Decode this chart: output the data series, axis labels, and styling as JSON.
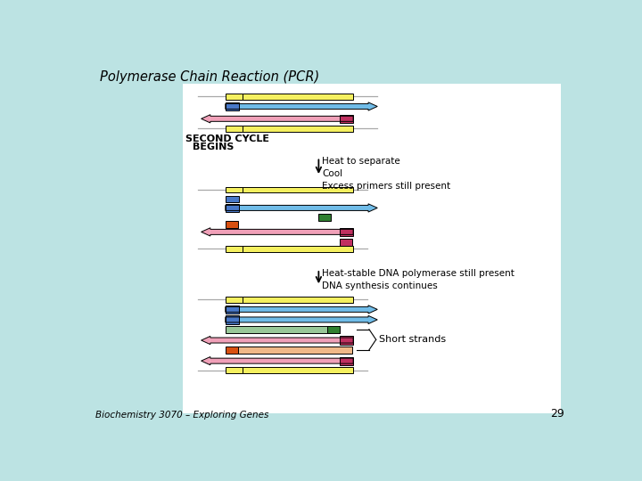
{
  "title": "Polymerase Chain Reaction (PCR)",
  "subtitle": "Biochemistry 3070 – Exploring Genes",
  "page_num": "29",
  "bg_color": "#bce3e3",
  "panel_color": "#ffffff",
  "colors": {
    "yellow": "#f5f060",
    "yellow_small": "#e8e030",
    "blue_arrow": "#70bce8",
    "blue_primer": "#4878c8",
    "pink_arrow": "#f0a0b8",
    "pink_dark": "#c03060",
    "green_dark": "#308030",
    "green_light": "#98c898",
    "orange": "#d85010",
    "orange_light": "#f0b888",
    "gray_line": "#a8a8a8"
  },
  "second_cycle_label_line1": "SECOND CYCLE",
  "second_cycle_label_line2": "BEGINS",
  "arrow1_label": "Heat to separate\nCool\nExcess primers still present",
  "arrow2_label": "Heat-stable DNA polymerase still present\nDNA synthesis continues",
  "short_strands_label": "Short strands"
}
